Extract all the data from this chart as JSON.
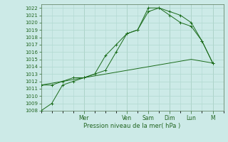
{
  "bg_color": "#cceae7",
  "grid_color": "#b0d8d0",
  "line_color": "#1a6b1a",
  "xlabel": "Pression niveau de la mer( hPa )",
  "ylim": [
    1008,
    1022.5
  ],
  "yticks": [
    1008,
    1009,
    1010,
    1011,
    1012,
    1013,
    1014,
    1015,
    1016,
    1017,
    1018,
    1019,
    1020,
    1021,
    1022
  ],
  "day_labels": [
    "Mer",
    "Ven",
    "Sam",
    "Dim",
    "Lun",
    "M"
  ],
  "day_tick_x": [
    2.0,
    4.0,
    5.0,
    6.0,
    7.0,
    8.0
  ],
  "xlim": [
    0,
    8.5
  ],
  "line1": {
    "x": [
      0,
      0.5,
      1.0,
      1.5,
      2.0,
      2.5,
      3.0,
      3.5,
      4.0,
      4.5,
      5.0,
      5.5,
      6.0,
      6.5,
      7.0,
      7.5,
      8.0
    ],
    "y": [
      1008,
      1009,
      1011.5,
      1012.0,
      1012.5,
      1013.0,
      1015.5,
      1017.0,
      1018.5,
      1019.0,
      1021.5,
      1022.0,
      1021.5,
      1021.0,
      1020.0,
      1017.5,
      1014.5
    ]
  },
  "line2": {
    "x": [
      0,
      0.5,
      1.0,
      1.5,
      2.0,
      2.5,
      3.0,
      3.5,
      4.0,
      4.5,
      5.0,
      5.5,
      6.0,
      6.5,
      7.0,
      7.5,
      8.0
    ],
    "y": [
      1011.5,
      1011.5,
      1012.0,
      1012.5,
      1012.5,
      1013.0,
      1013.5,
      1016.0,
      1018.5,
      1019.0,
      1022.0,
      1022.0,
      1021.0,
      1020.0,
      1019.5,
      1017.5,
      1014.5
    ]
  },
  "line3": {
    "x": [
      0,
      1.0,
      2.0,
      3.0,
      4.0,
      5.0,
      6.0,
      7.0,
      8.0
    ],
    "y": [
      1011.5,
      1012.0,
      1012.5,
      1013.0,
      1013.5,
      1014.0,
      1014.5,
      1015.0,
      1014.5
    ]
  },
  "ytick_fontsize": 5,
  "xtick_fontsize": 5.5,
  "xlabel_fontsize": 6
}
